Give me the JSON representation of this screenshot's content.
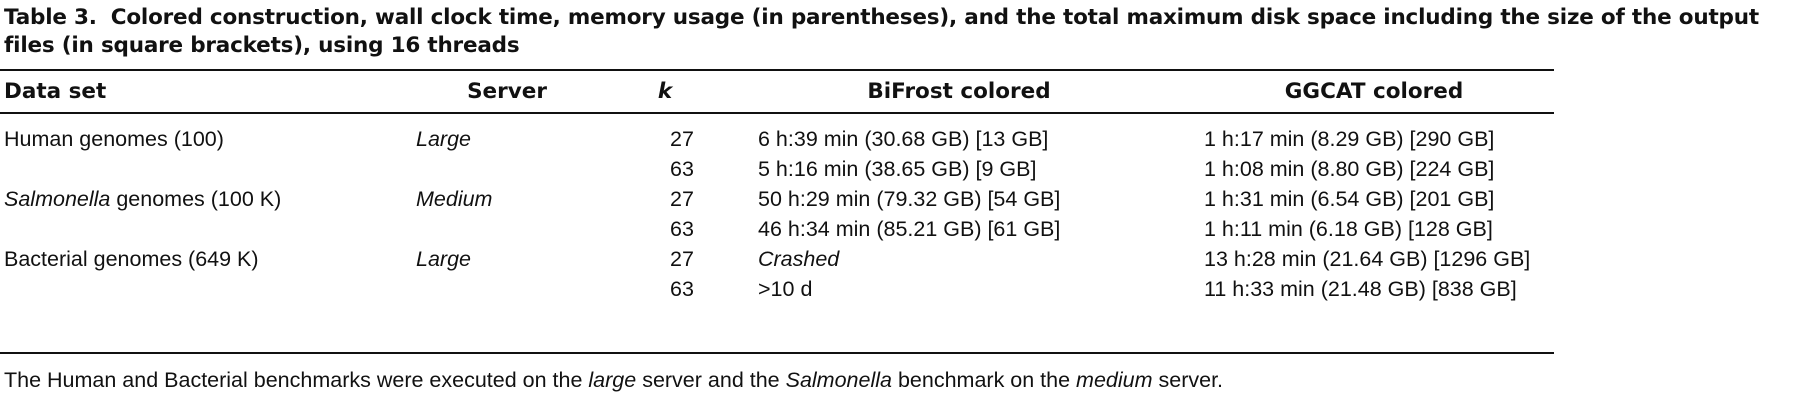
{
  "caption": {
    "label": "Table 3.",
    "text": "Colored construction, wall clock time, memory usage (in parentheses), and the total maximum disk space including the size of the output files (in square brackets), using 16 threads"
  },
  "table": {
    "headers": [
      "Data set",
      "Server",
      "k",
      "BiFrost colored",
      "GGCAT colored"
    ],
    "rows": [
      {
        "ds_pre": "Human genomes (100)",
        "ds_italic": "",
        "ds_post": "",
        "server": "Large",
        "k": "27",
        "bifrost": "6 h:39 min (30.68 GB) [13 GB]",
        "bifrost_italic": false,
        "ggcat": "1 h:17 min (8.29 GB) [290 GB]"
      },
      {
        "ds_pre": "",
        "ds_italic": "",
        "ds_post": "",
        "server": "",
        "k": "63",
        "bifrost": "5 h:16 min (38.65 GB) [9 GB]",
        "bifrost_italic": false,
        "ggcat": "1 h:08 min (8.80 GB) [224 GB]"
      },
      {
        "ds_pre": "",
        "ds_italic": "Salmonella",
        "ds_post": " genomes (100 K)",
        "server": "Medium",
        "k": "27",
        "bifrost": "50 h:29 min (79.32 GB) [54 GB]",
        "bifrost_italic": false,
        "ggcat": "1 h:31 min (6.54 GB) [201 GB]"
      },
      {
        "ds_pre": "",
        "ds_italic": "",
        "ds_post": "",
        "server": "",
        "k": "63",
        "bifrost": "46 h:34 min (85.21 GB) [61 GB]",
        "bifrost_italic": false,
        "ggcat": "1 h:11 min (6.18 GB) [128 GB]"
      },
      {
        "ds_pre": "Bacterial genomes (649 K)",
        "ds_italic": "",
        "ds_post": "",
        "server": "Large",
        "k": "27",
        "bifrost": "Crashed",
        "bifrost_italic": true,
        "ggcat": "13 h:28 min (21.64 GB) [1296 GB]"
      },
      {
        "ds_pre": "",
        "ds_italic": "",
        "ds_post": "",
        "server": "",
        "k": "63",
        "bifrost": ">10 d",
        "bifrost_italic": false,
        "ggcat": "11 h:33 min (21.48 GB) [838 GB]"
      }
    ]
  },
  "note": {
    "p1": "The Human and Bacterial benchmarks were executed on the ",
    "i1": "large",
    "p2": " server and the ",
    "i2": "Salmonella",
    "p3": " benchmark on the ",
    "i3": "medium",
    "p4": " server."
  }
}
